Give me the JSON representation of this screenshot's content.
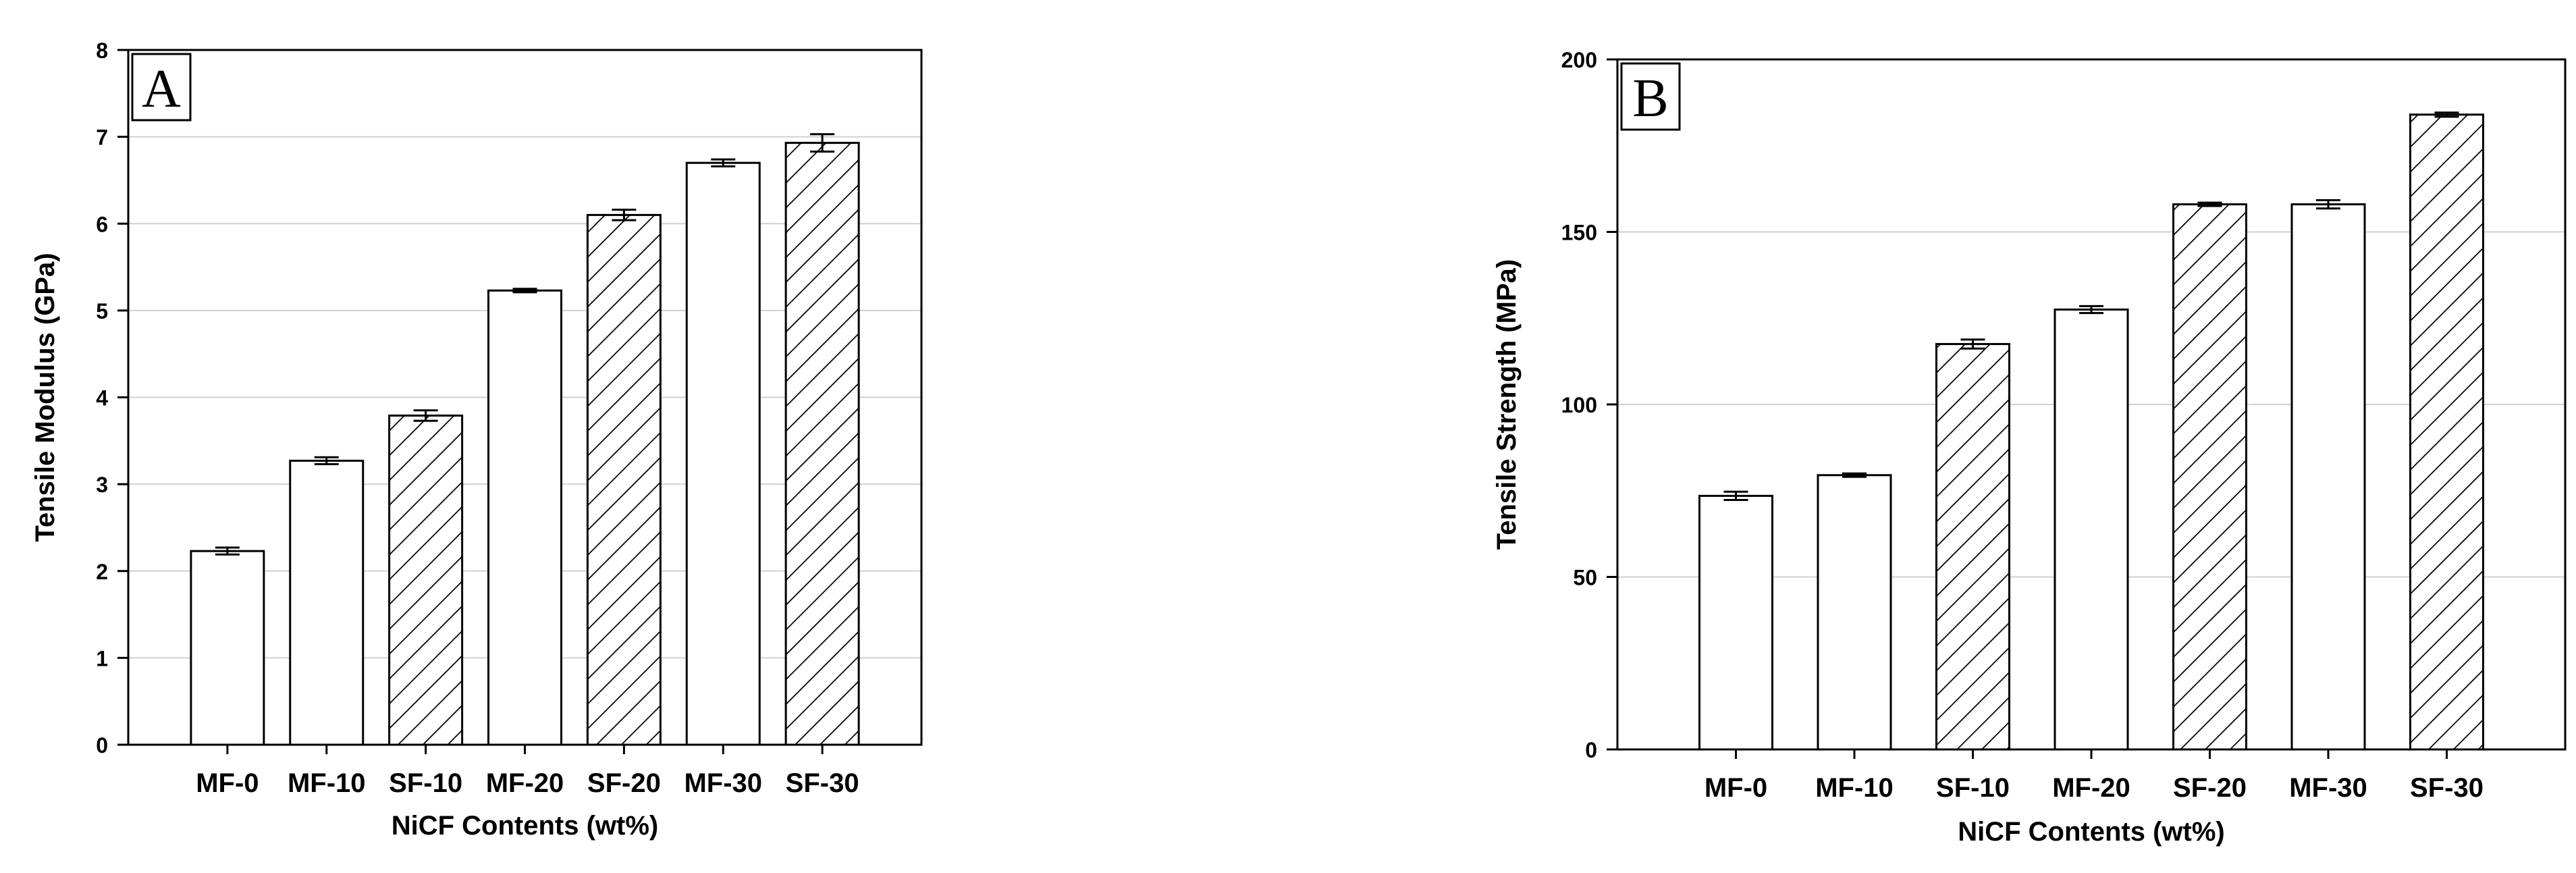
{
  "chart_data": [
    {
      "panel": "A",
      "type": "bar",
      "xlabel": "NiCF Contents (wt%)",
      "ylabel": "Tensile Modulus (GPa)",
      "ylim": [
        0,
        8
      ],
      "yticks": [
        0,
        1,
        2,
        3,
        4,
        5,
        6,
        7,
        8
      ],
      "grid": "horizontal",
      "categories": [
        "MF-0",
        "MF-10",
        "SF-10",
        "MF-20",
        "SF-20",
        "MF-30",
        "SF-30"
      ],
      "values": [
        2.23,
        3.27,
        3.79,
        5.23,
        6.1,
        6.7,
        6.93
      ],
      "errors": [
        0.04,
        0.04,
        0.06,
        0.02,
        0.06,
        0.04,
        0.1
      ],
      "fills": [
        "plain",
        "plain",
        "hatched",
        "plain",
        "hatched",
        "plain",
        "hatched"
      ]
    },
    {
      "panel": "B",
      "type": "bar",
      "xlabel": "NiCF Contents (wt%)",
      "ylabel": "Tensile Strength (MPa)",
      "ylim": [
        0,
        200
      ],
      "yticks": [
        0,
        50,
        100,
        150,
        200
      ],
      "grid": "horizontal",
      "categories": [
        "MF-0",
        "MF-10",
        "SF-10",
        "MF-20",
        "SF-20",
        "MF-30",
        "SF-30"
      ],
      "values": [
        73.5,
        79.5,
        117.5,
        127.5,
        158,
        158,
        184
      ],
      "errors": [
        1.2,
        0.5,
        1.3,
        1.0,
        0.5,
        1.2,
        0.6
      ],
      "fills": [
        "plain",
        "plain",
        "hatched",
        "plain",
        "hatched",
        "plain",
        "hatched"
      ]
    }
  ],
  "colors": {
    "bar_fill": "#ffffff",
    "bar_stroke": "#000000",
    "hatch": "#000000",
    "grid": "#d0d0d0"
  }
}
